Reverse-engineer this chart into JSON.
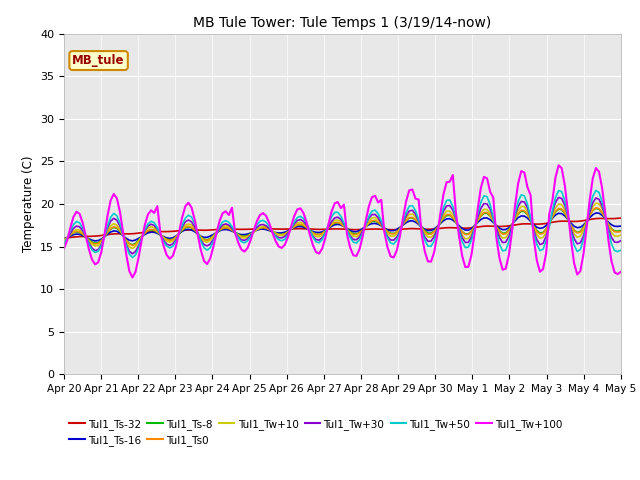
{
  "title": "MB Tule Tower: Tule Temps 1 (3/19/14-now)",
  "ylabel": "Temperature (C)",
  "ylim": [
    0,
    40
  ],
  "yticks": [
    0,
    5,
    10,
    15,
    20,
    25,
    30,
    35,
    40
  ],
  "bg_color": "#e8e8e8",
  "fig_bg": "#ffffff",
  "box_label": "MB_tule",
  "series_order": [
    "Tul1_Ts-32",
    "Tul1_Ts-16",
    "Tul1_Ts-8",
    "Tul1_Ts0",
    "Tul1_Tw+10",
    "Tul1_Tw+30",
    "Tul1_Tw+50",
    "Tul1_Tw+100"
  ],
  "series": {
    "Tul1_Ts-32": {
      "color": "#cc0000",
      "lw": 1.2
    },
    "Tul1_Ts-16": {
      "color": "#0000cc",
      "lw": 1.2
    },
    "Tul1_Ts-8": {
      "color": "#00bb00",
      "lw": 1.2
    },
    "Tul1_Ts0": {
      "color": "#ff8800",
      "lw": 1.2
    },
    "Tul1_Tw+10": {
      "color": "#cccc00",
      "lw": 1.2
    },
    "Tul1_Tw+30": {
      "color": "#8800cc",
      "lw": 1.2
    },
    "Tul1_Tw+50": {
      "color": "#00cccc",
      "lw": 1.2
    },
    "Tul1_Tw+100": {
      "color": "#ff00ff",
      "lw": 1.5
    }
  },
  "xtick_labels": [
    "Apr 20",
    "Apr 21",
    "Apr 22",
    "Apr 23",
    "Apr 24",
    "Apr 25",
    "Apr 26",
    "Apr 27",
    "Apr 28",
    "Apr 29",
    "Apr 30",
    "May 1",
    "May 2",
    "May 3",
    "May 4",
    "May 5"
  ],
  "n_ticks": 16,
  "legend_ncol1": 6,
  "legend_ncol2": 2
}
